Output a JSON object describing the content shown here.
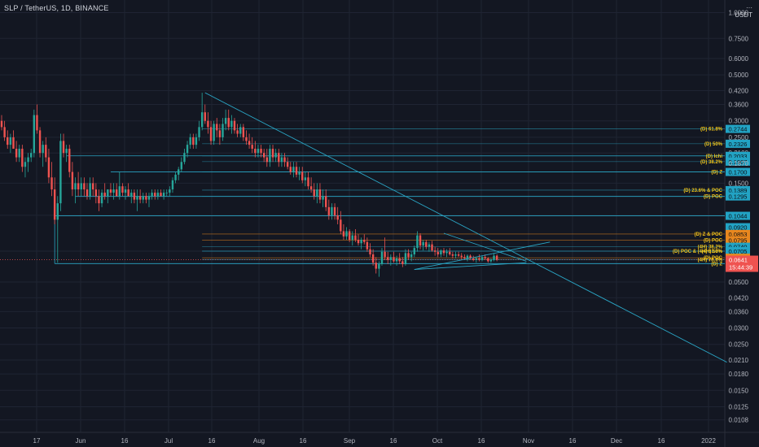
{
  "header": {
    "symbol_title": "SLP / TetherUS, 1D, BINANCE",
    "currency_ellipsis": "···",
    "currency": "USDT"
  },
  "colors": {
    "background": "#131722",
    "grid": "#1f2433",
    "up": "#26a69a",
    "down": "#ef5350",
    "trend": "#2aa5c4",
    "level": "#2aa5c4",
    "orange": "#e8871e",
    "label_text": "#f0c419",
    "axis_text": "#b2b5be"
  },
  "chart_data": {
    "type": "candlestick",
    "title": "SLP / TetherUS, 1D, BINANCE",
    "y_scale": "log",
    "y_unit": "USDT",
    "grid": true,
    "ylim": [
      0.0094,
      1.15
    ],
    "x_ticks": [
      "17",
      "Jun",
      "16",
      "Jul",
      "16",
      "Aug",
      "16",
      "Sep",
      "16",
      "Oct",
      "16",
      "Nov",
      "16",
      "Dec",
      "16",
      "2022"
    ],
    "y_ticks": [
      1.0,
      0.75,
      0.6,
      0.5,
      0.42,
      0.36,
      0.3,
      0.25,
      0.21,
      0.15,
      0.105,
      0.0705,
      0.05,
      0.042,
      0.036,
      0.03,
      0.025,
      0.021,
      0.018,
      0.015,
      0.0125,
      0.0108
    ],
    "overlapped_tick_text": "0.1870",
    "price_levels": [
      {
        "label": "(D) 61.8%",
        "value": 0.2744,
        "tag_color": "teal"
      },
      {
        "label": "(D) 50%",
        "value": 0.2326,
        "tag_color": "teal"
      },
      {
        "label": "(D) Ichi",
        "value": 0.2033,
        "tag_color": "teal"
      },
      {
        "label": "(D) 38.2%",
        "value": 0.1907,
        "tag_color": "teal"
      },
      {
        "label": "(D) Z",
        "value": 0.17,
        "tag_color": "teal"
      },
      {
        "label": "(D) 23.6% & POC",
        "value": 0.1389,
        "tag_color": "teal"
      },
      {
        "label": "(D) POC",
        "value": 0.1295,
        "tag_color": "teal"
      },
      {
        "label": "",
        "value": 0.1044,
        "tag_color": "teal"
      },
      {
        "label": "",
        "value": 0.092,
        "tag_color": "teal"
      },
      {
        "label": "(D) Z & POC",
        "value": 0.0853,
        "tag_color": "orange"
      },
      {
        "label": "(D) POC",
        "value": 0.0795,
        "tag_color": "orange"
      },
      {
        "label": "(4H) 38.2%",
        "value": 0.074,
        "tag_color": "teal"
      },
      {
        "label": "(4H) 50%",
        "value": 0.0705,
        "tag_color": "teal"
      },
      {
        "label": "(D) POC & (4H) 61.8%",
        "value": 0.0705,
        "tag_color": "none"
      },
      {
        "label": "(D) POC",
        "value": 0.0655,
        "tag_color": "orange"
      },
      {
        "label": "(4H) 78.6%",
        "value": 0.0641,
        "tag_color": "none"
      },
      {
        "label": "(D) Z",
        "value": 0.0614,
        "tag_color": "teal"
      }
    ],
    "last_price": {
      "value": 0.0641,
      "countdown": "15:44:39"
    },
    "candles_ohlc": [
      [
        0.3,
        0.32,
        0.27,
        0.28
      ],
      [
        0.28,
        0.3,
        0.24,
        0.25
      ],
      [
        0.25,
        0.27,
        0.22,
        0.23
      ],
      [
        0.23,
        0.26,
        0.21,
        0.25
      ],
      [
        0.25,
        0.27,
        0.22,
        0.22
      ],
      [
        0.22,
        0.24,
        0.19,
        0.2
      ],
      [
        0.2,
        0.23,
        0.19,
        0.22
      ],
      [
        0.22,
        0.23,
        0.17,
        0.18
      ],
      [
        0.18,
        0.2,
        0.16,
        0.19
      ],
      [
        0.19,
        0.21,
        0.17,
        0.2
      ],
      [
        0.2,
        0.22,
        0.19,
        0.21
      ],
      [
        0.21,
        0.34,
        0.2,
        0.32
      ],
      [
        0.32,
        0.36,
        0.26,
        0.27
      ],
      [
        0.27,
        0.28,
        0.2,
        0.21
      ],
      [
        0.21,
        0.24,
        0.18,
        0.23
      ],
      [
        0.23,
        0.25,
        0.19,
        0.2
      ],
      [
        0.2,
        0.22,
        0.15,
        0.16
      ],
      [
        0.16,
        0.19,
        0.13,
        0.14
      ],
      [
        0.14,
        0.16,
        0.095,
        0.1
      ],
      [
        0.1,
        0.13,
        0.062,
        0.12
      ],
      [
        0.12,
        0.26,
        0.11,
        0.24
      ],
      [
        0.24,
        0.26,
        0.2,
        0.21
      ],
      [
        0.21,
        0.23,
        0.19,
        0.22
      ],
      [
        0.22,
        0.23,
        0.16,
        0.17
      ],
      [
        0.17,
        0.19,
        0.13,
        0.14
      ],
      [
        0.14,
        0.16,
        0.12,
        0.15
      ],
      [
        0.15,
        0.17,
        0.13,
        0.14
      ],
      [
        0.14,
        0.16,
        0.13,
        0.15
      ],
      [
        0.15,
        0.16,
        0.13,
        0.14
      ],
      [
        0.14,
        0.15,
        0.125,
        0.13
      ],
      [
        0.13,
        0.16,
        0.125,
        0.15
      ],
      [
        0.15,
        0.16,
        0.13,
        0.14
      ],
      [
        0.14,
        0.15,
        0.12,
        0.13
      ],
      [
        0.13,
        0.14,
        0.11,
        0.12
      ],
      [
        0.12,
        0.14,
        0.115,
        0.135
      ],
      [
        0.135,
        0.15,
        0.125,
        0.13
      ],
      [
        0.13,
        0.14,
        0.12,
        0.14
      ],
      [
        0.14,
        0.15,
        0.13,
        0.135
      ],
      [
        0.135,
        0.15,
        0.125,
        0.14
      ],
      [
        0.14,
        0.15,
        0.13,
        0.13
      ],
      [
        0.13,
        0.17,
        0.125,
        0.145
      ],
      [
        0.145,
        0.15,
        0.13,
        0.135
      ],
      [
        0.135,
        0.145,
        0.125,
        0.14
      ],
      [
        0.14,
        0.15,
        0.13,
        0.13
      ],
      [
        0.13,
        0.14,
        0.12,
        0.135
      ],
      [
        0.135,
        0.14,
        0.12,
        0.125
      ],
      [
        0.125,
        0.14,
        0.11,
        0.13
      ],
      [
        0.13,
        0.14,
        0.12,
        0.125
      ],
      [
        0.125,
        0.135,
        0.12,
        0.13
      ],
      [
        0.13,
        0.135,
        0.12,
        0.125
      ],
      [
        0.125,
        0.135,
        0.115,
        0.13
      ],
      [
        0.13,
        0.14,
        0.125,
        0.135
      ],
      [
        0.135,
        0.14,
        0.125,
        0.13
      ],
      [
        0.13,
        0.14,
        0.125,
        0.135
      ],
      [
        0.135,
        0.14,
        0.13,
        0.13
      ],
      [
        0.13,
        0.14,
        0.125,
        0.135
      ],
      [
        0.135,
        0.14,
        0.13,
        0.135
      ],
      [
        0.135,
        0.145,
        0.13,
        0.14
      ],
      [
        0.14,
        0.16,
        0.135,
        0.155
      ],
      [
        0.155,
        0.17,
        0.15,
        0.165
      ],
      [
        0.165,
        0.18,
        0.155,
        0.175
      ],
      [
        0.175,
        0.2,
        0.17,
        0.19
      ],
      [
        0.19,
        0.22,
        0.185,
        0.21
      ],
      [
        0.21,
        0.24,
        0.2,
        0.23
      ],
      [
        0.23,
        0.26,
        0.22,
        0.25
      ],
      [
        0.25,
        0.26,
        0.22,
        0.23
      ],
      [
        0.23,
        0.26,
        0.22,
        0.25
      ],
      [
        0.25,
        0.3,
        0.24,
        0.28
      ],
      [
        0.28,
        0.41,
        0.27,
        0.33
      ],
      [
        0.33,
        0.36,
        0.29,
        0.3
      ],
      [
        0.3,
        0.33,
        0.26,
        0.28
      ],
      [
        0.28,
        0.3,
        0.23,
        0.24
      ],
      [
        0.24,
        0.3,
        0.23,
        0.29
      ],
      [
        0.29,
        0.31,
        0.25,
        0.27
      ],
      [
        0.27,
        0.29,
        0.23,
        0.25
      ],
      [
        0.25,
        0.31,
        0.24,
        0.29
      ],
      [
        0.29,
        0.34,
        0.27,
        0.31
      ],
      [
        0.31,
        0.34,
        0.27,
        0.28
      ],
      [
        0.28,
        0.32,
        0.26,
        0.3
      ],
      [
        0.3,
        0.31,
        0.26,
        0.27
      ],
      [
        0.27,
        0.29,
        0.25,
        0.26
      ],
      [
        0.26,
        0.29,
        0.25,
        0.28
      ],
      [
        0.28,
        0.29,
        0.24,
        0.25
      ],
      [
        0.25,
        0.27,
        0.23,
        0.24
      ],
      [
        0.24,
        0.26,
        0.22,
        0.23
      ],
      [
        0.23,
        0.25,
        0.21,
        0.22
      ],
      [
        0.22,
        0.24,
        0.2,
        0.21
      ],
      [
        0.21,
        0.23,
        0.2,
        0.22
      ],
      [
        0.22,
        0.23,
        0.2,
        0.21
      ],
      [
        0.21,
        0.22,
        0.19,
        0.2
      ],
      [
        0.2,
        0.22,
        0.18,
        0.19
      ],
      [
        0.19,
        0.23,
        0.18,
        0.22
      ],
      [
        0.22,
        0.23,
        0.19,
        0.2
      ],
      [
        0.2,
        0.22,
        0.19,
        0.21
      ],
      [
        0.21,
        0.22,
        0.18,
        0.19
      ],
      [
        0.19,
        0.21,
        0.18,
        0.2
      ],
      [
        0.2,
        0.21,
        0.18,
        0.19
      ],
      [
        0.19,
        0.2,
        0.175,
        0.18
      ],
      [
        0.18,
        0.19,
        0.165,
        0.17
      ],
      [
        0.17,
        0.19,
        0.16,
        0.18
      ],
      [
        0.18,
        0.19,
        0.16,
        0.165
      ],
      [
        0.165,
        0.18,
        0.155,
        0.17
      ],
      [
        0.17,
        0.18,
        0.15,
        0.155
      ],
      [
        0.155,
        0.17,
        0.145,
        0.16
      ],
      [
        0.16,
        0.17,
        0.14,
        0.145
      ],
      [
        0.145,
        0.16,
        0.135,
        0.14
      ],
      [
        0.14,
        0.15,
        0.125,
        0.13
      ],
      [
        0.13,
        0.15,
        0.12,
        0.14
      ],
      [
        0.14,
        0.15,
        0.12,
        0.125
      ],
      [
        0.125,
        0.14,
        0.115,
        0.13
      ],
      [
        0.13,
        0.14,
        0.11,
        0.115
      ],
      [
        0.115,
        0.125,
        0.1,
        0.105
      ],
      [
        0.105,
        0.12,
        0.1,
        0.115
      ],
      [
        0.115,
        0.12,
        0.1,
        0.105
      ],
      [
        0.105,
        0.115,
        0.095,
        0.1
      ],
      [
        0.1,
        0.11,
        0.085,
        0.088
      ],
      [
        0.088,
        0.095,
        0.08,
        0.083
      ],
      [
        0.083,
        0.092,
        0.08,
        0.088
      ],
      [
        0.088,
        0.09,
        0.078,
        0.08
      ],
      [
        0.08,
        0.088,
        0.075,
        0.084
      ],
      [
        0.084,
        0.09,
        0.078,
        0.08
      ],
      [
        0.08,
        0.085,
        0.075,
        0.077
      ],
      [
        0.077,
        0.082,
        0.072,
        0.08
      ],
      [
        0.08,
        0.085,
        0.076,
        0.078
      ],
      [
        0.078,
        0.082,
        0.07,
        0.072
      ],
      [
        0.072,
        0.077,
        0.066,
        0.068
      ],
      [
        0.068,
        0.072,
        0.06,
        0.062
      ],
      [
        0.062,
        0.066,
        0.055,
        0.058
      ],
      [
        0.058,
        0.063,
        0.053,
        0.061
      ],
      [
        0.061,
        0.073,
        0.06,
        0.07
      ],
      [
        0.07,
        0.082,
        0.064,
        0.066
      ],
      [
        0.066,
        0.07,
        0.061,
        0.064
      ],
      [
        0.064,
        0.068,
        0.06,
        0.066
      ],
      [
        0.066,
        0.07,
        0.062,
        0.063
      ],
      [
        0.063,
        0.067,
        0.06,
        0.065
      ],
      [
        0.065,
        0.069,
        0.061,
        0.063
      ],
      [
        0.063,
        0.066,
        0.059,
        0.061
      ],
      [
        0.061,
        0.072,
        0.06,
        0.069
      ],
      [
        0.069,
        0.072,
        0.064,
        0.066
      ],
      [
        0.066,
        0.07,
        0.063,
        0.068
      ],
      [
        0.068,
        0.075,
        0.066,
        0.073
      ],
      [
        0.073,
        0.088,
        0.07,
        0.084
      ],
      [
        0.084,
        0.086,
        0.072,
        0.075
      ],
      [
        0.075,
        0.08,
        0.071,
        0.078
      ],
      [
        0.078,
        0.08,
        0.072,
        0.074
      ],
      [
        0.074,
        0.078,
        0.07,
        0.076
      ],
      [
        0.076,
        0.079,
        0.07,
        0.071
      ],
      [
        0.071,
        0.074,
        0.067,
        0.07
      ],
      [
        0.07,
        0.073,
        0.066,
        0.068
      ],
      [
        0.068,
        0.072,
        0.066,
        0.071
      ],
      [
        0.071,
        0.073,
        0.067,
        0.069
      ],
      [
        0.069,
        0.072,
        0.066,
        0.07
      ],
      [
        0.07,
        0.073,
        0.067,
        0.068
      ],
      [
        0.068,
        0.07,
        0.065,
        0.067
      ],
      [
        0.067,
        0.07,
        0.065,
        0.068
      ],
      [
        0.068,
        0.07,
        0.066,
        0.067
      ],
      [
        0.067,
        0.069,
        0.064,
        0.066
      ],
      [
        0.066,
        0.068,
        0.064,
        0.065
      ],
      [
        0.065,
        0.068,
        0.063,
        0.067
      ],
      [
        0.067,
        0.068,
        0.064,
        0.065
      ],
      [
        0.065,
        0.067,
        0.063,
        0.064
      ],
      [
        0.064,
        0.066,
        0.062,
        0.065
      ],
      [
        0.065,
        0.068,
        0.063,
        0.064
      ],
      [
        0.064,
        0.067,
        0.063,
        0.066
      ],
      [
        0.066,
        0.068,
        0.064,
        0.065
      ],
      [
        0.065,
        0.066,
        0.062,
        0.063
      ],
      [
        0.063,
        0.065,
        0.062,
        0.064
      ],
      [
        0.064,
        0.069,
        0.063,
        0.067
      ],
      [
        0.067,
        0.068,
        0.063,
        0.0641
      ]
    ],
    "trendlines": [
      {
        "from": {
          "i": 69,
          "p": 0.41
        },
        "to": {
          "i": 246,
          "p": 0.0205
        }
      },
      {
        "from": {
          "i": 140,
          "p": 0.0575
        },
        "to": {
          "i": 186,
          "p": 0.078
        }
      },
      {
        "from": {
          "i": 140,
          "p": 0.0575
        },
        "to": {
          "i": 178,
          "p": 0.062
        }
      },
      {
        "from": {
          "i": 150,
          "p": 0.086
        },
        "to": {
          "i": 178,
          "p": 0.063
        }
      }
    ],
    "range_lines": [
      {
        "value": 0.0614,
        "from_i": 18,
        "to_i": 246
      },
      {
        "value": 0.2033,
        "from_i": 22,
        "to_i": 246
      },
      {
        "value": 0.1044,
        "from_i": 18,
        "to_i": 246
      },
      {
        "value": 0.17,
        "from_i": 37,
        "to_i": 246
      },
      {
        "value": 0.1295,
        "from_i": 25,
        "to_i": 246
      }
    ]
  }
}
